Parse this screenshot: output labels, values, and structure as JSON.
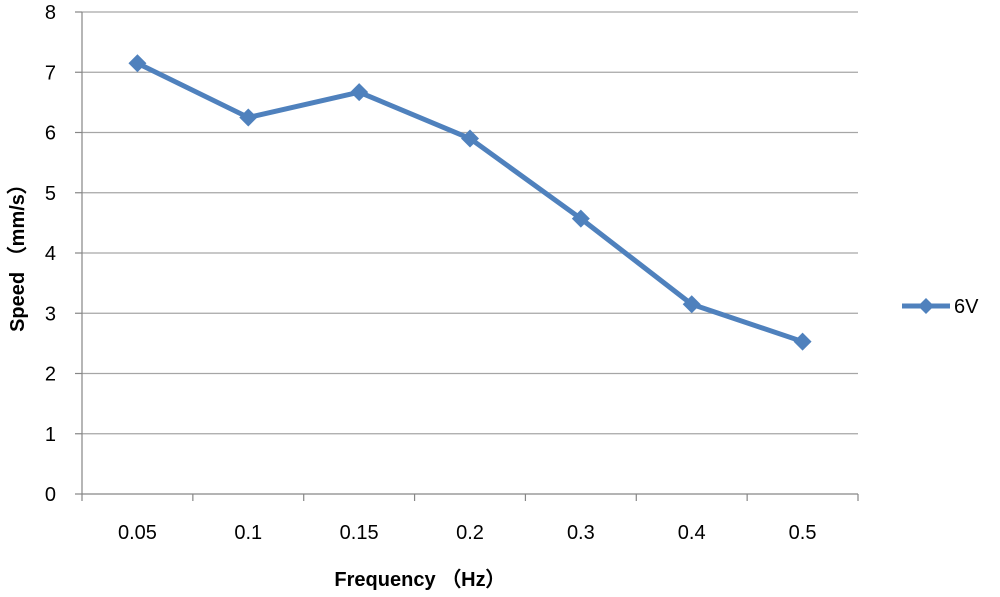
{
  "chart_data": {
    "type": "line",
    "categories": [
      "0.05",
      "0.1",
      "0.15",
      "0.2",
      "0.3",
      "0.4",
      "0.5"
    ],
    "series": [
      {
        "name": "6V",
        "values": [
          7.15,
          6.25,
          6.67,
          5.9,
          4.57,
          3.15,
          2.53
        ],
        "color": "#4f81bd",
        "marker": "diamond"
      }
    ],
    "xlabel": "Frequency （Hz）",
    "ylabel": "Speed （mm/s）",
    "ylim": [
      0,
      8
    ],
    "yticks": [
      "0",
      "1",
      "2",
      "3",
      "4",
      "5",
      "6",
      "7",
      "8"
    ],
    "grid": "horizontal",
    "legend_position": "right",
    "colors": {
      "grid": "#a6a6a6",
      "axis": "#868686",
      "series": "#4f81bd"
    }
  }
}
